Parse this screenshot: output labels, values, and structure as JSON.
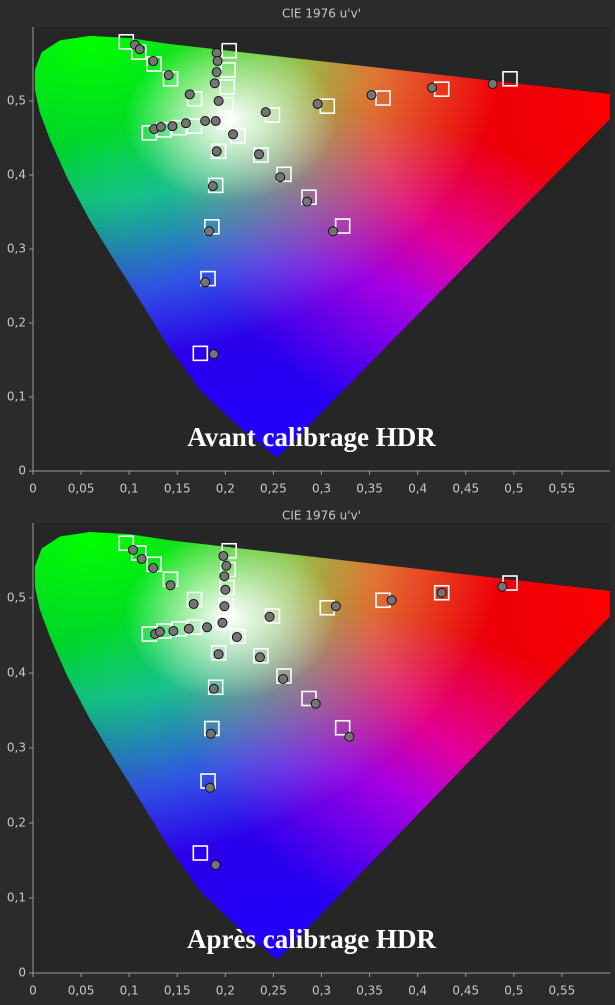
{
  "chart_data": [
    {
      "type": "scatter",
      "title": "CIE 1976 u'v'",
      "annotation": "Avant calibrage HDR",
      "xlim": [
        0,
        0.6
      ],
      "ylim": [
        0,
        0.6
      ],
      "xticks": [
        0,
        {
          "value": 0.05,
          "label": "0,05"
        },
        {
          "value": 0.1,
          "label": "0,1"
        },
        {
          "value": 0.15,
          "label": "0,15"
        },
        {
          "value": 0.2,
          "label": "0,2"
        },
        {
          "value": 0.25,
          "label": "0,25"
        },
        {
          "value": 0.3,
          "label": "0,3"
        },
        {
          "value": 0.35,
          "label": "0,35"
        },
        {
          "value": 0.4,
          "label": "0,4"
        },
        {
          "value": 0.45,
          "label": "0,45"
        },
        {
          "value": 0.5,
          "label": "0,5"
        },
        {
          "value": 0.55,
          "label": "0,55"
        }
      ],
      "yticks": [
        0,
        {
          "value": 0.1,
          "label": "0,1"
        },
        {
          "value": 0.2,
          "label": "0,2"
        },
        {
          "value": 0.3,
          "label": "0,3"
        },
        {
          "value": 0.4,
          "label": "0,4"
        },
        {
          "value": 0.5,
          "label": "0,5"
        }
      ],
      "series": [
        {
          "marker": "square",
          "color": "#ffffff",
          "x": [
            0.097,
            0.11,
            0.126,
            0.143,
            0.168,
            0.204,
            0.203,
            0.202,
            0.201,
            0.198,
            0.496,
            0.425,
            0.364,
            0.306,
            0.249,
            0.121,
            0.136,
            0.152,
            0.168,
            0.174,
            0.182,
            0.186,
            0.19,
            0.193,
            0.322,
            0.287,
            0.261,
            0.237,
            0.213
          ],
          "y": [
            0.58,
            0.566,
            0.55,
            0.53,
            0.503,
            0.568,
            0.542,
            0.519,
            0.495,
            0.472,
            0.53,
            0.516,
            0.504,
            0.493,
            0.481,
            0.457,
            0.461,
            0.464,
            0.466,
            0.159,
            0.26,
            0.33,
            0.386,
            0.432,
            0.331,
            0.37,
            0.401,
            0.427,
            0.453
          ]
        },
        {
          "marker": "circle",
          "color": "#747474",
          "x": [
            0.106,
            0.111,
            0.125,
            0.141,
            0.163,
            0.191,
            0.192,
            0.191,
            0.189,
            0.193,
            0.19,
            0.478,
            0.415,
            0.352,
            0.296,
            0.242,
            0.126,
            0.133,
            0.145,
            0.159,
            0.179,
            0.188,
            0.179,
            0.183,
            0.187,
            0.191,
            0.312,
            0.285,
            0.257,
            0.235,
            0.208
          ],
          "y": [
            0.576,
            0.57,
            0.554,
            0.535,
            0.509,
            0.565,
            0.554,
            0.539,
            0.524,
            0.5,
            0.473,
            0.523,
            0.518,
            0.508,
            0.496,
            0.485,
            0.462,
            0.465,
            0.466,
            0.47,
            0.473,
            0.158,
            0.255,
            0.324,
            0.385,
            0.432,
            0.324,
            0.364,
            0.397,
            0.428,
            0.455
          ]
        }
      ]
    },
    {
      "type": "scatter",
      "title": "CIE 1976 u'v'",
      "annotation": "Après calibrage HDR",
      "xlim": [
        0,
        0.6
      ],
      "ylim": [
        0,
        0.6
      ],
      "xticks": [
        0,
        {
          "value": 0.05,
          "label": "0,05"
        },
        {
          "value": 0.1,
          "label": "0,1"
        },
        {
          "value": 0.15,
          "label": "0,15"
        },
        {
          "value": 0.2,
          "label": "0,2"
        },
        {
          "value": 0.25,
          "label": "0,25"
        },
        {
          "value": 0.3,
          "label": "0,3"
        },
        {
          "value": 0.35,
          "label": "0,35"
        },
        {
          "value": 0.4,
          "label": "0,4"
        },
        {
          "value": 0.45,
          "label": "0,45"
        },
        {
          "value": 0.5,
          "label": "0,5"
        },
        {
          "value": 0.55,
          "label": "0,55"
        }
      ],
      "yticks": [
        0,
        {
          "value": 0.1,
          "label": "0,1"
        },
        {
          "value": 0.2,
          "label": "0,2"
        },
        {
          "value": 0.3,
          "label": "0,3"
        },
        {
          "value": 0.4,
          "label": "0,4"
        },
        {
          "value": 0.5,
          "label": "0,5"
        }
      ],
      "series": [
        {
          "marker": "square",
          "color": "#ffffff",
          "x": [
            0.097,
            0.11,
            0.126,
            0.143,
            0.168,
            0.204,
            0.203,
            0.202,
            0.201,
            0.198,
            0.496,
            0.425,
            0.364,
            0.306,
            0.249,
            0.121,
            0.136,
            0.152,
            0.168,
            0.174,
            0.182,
            0.186,
            0.19,
            0.193,
            0.322,
            0.287,
            0.261,
            0.237,
            0.213
          ],
          "y": [
            0.573,
            0.56,
            0.545,
            0.525,
            0.498,
            0.563,
            0.538,
            0.514,
            0.49,
            0.467,
            0.52,
            0.507,
            0.497,
            0.487,
            0.476,
            0.452,
            0.456,
            0.459,
            0.461,
            0.16,
            0.256,
            0.326,
            0.381,
            0.427,
            0.327,
            0.366,
            0.396,
            0.423,
            0.449
          ]
        },
        {
          "marker": "circle",
          "color": "#747474",
          "x": [
            0.104,
            0.113,
            0.125,
            0.143,
            0.167,
            0.198,
            0.201,
            0.199,
            0.2,
            0.199,
            0.197,
            0.488,
            0.425,
            0.373,
            0.315,
            0.246,
            0.127,
            0.132,
            0.146,
            0.162,
            0.181,
            0.19,
            0.184,
            0.185,
            0.188,
            0.193,
            0.329,
            0.294,
            0.26,
            0.236,
            0.212
          ],
          "y": [
            0.564,
            0.552,
            0.54,
            0.517,
            0.492,
            0.556,
            0.543,
            0.529,
            0.511,
            0.489,
            0.467,
            0.515,
            0.507,
            0.497,
            0.489,
            0.475,
            0.452,
            0.455,
            0.456,
            0.459,
            0.461,
            0.144,
            0.247,
            0.319,
            0.379,
            0.425,
            0.315,
            0.359,
            0.392,
            0.421,
            0.448
          ]
        }
      ]
    }
  ]
}
